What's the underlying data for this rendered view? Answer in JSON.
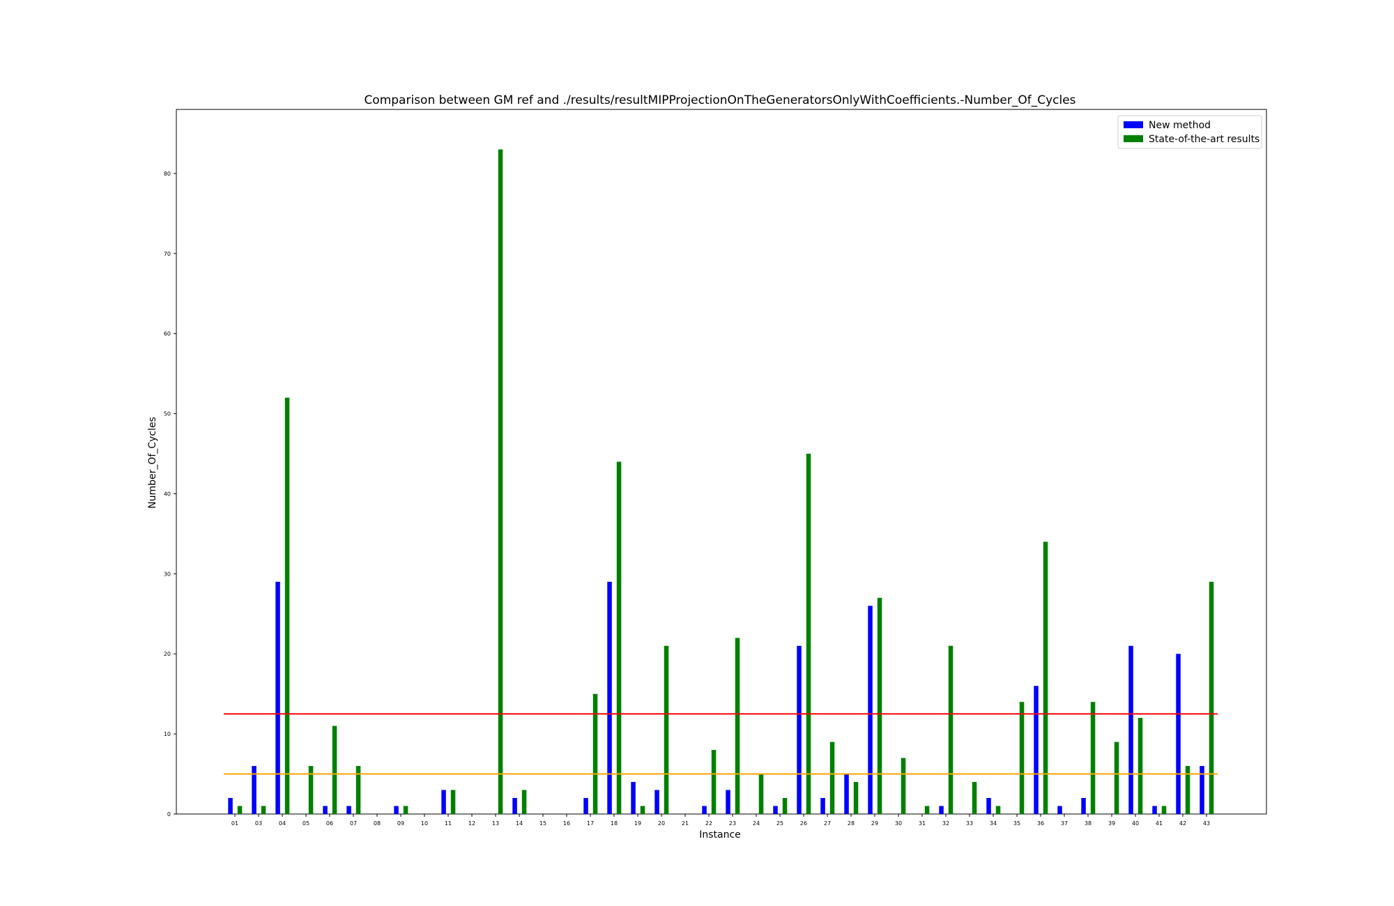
{
  "chart_data": {
    "type": "bar",
    "title": "Comparison between GM ref and ./results/resultMIPProjectionOnTheGeneratorsOnlyWithCoefficients.-Number_Of_Cycles",
    "xlabel": "Instance",
    "ylabel": "Number_Of_Cycles",
    "ylim": [
      0,
      88
    ],
    "yticks": [
      0,
      10,
      20,
      30,
      40,
      50,
      60,
      70,
      80
    ],
    "categories": [
      "01",
      "03",
      "04",
      "05",
      "06",
      "07",
      "08",
      "09",
      "10",
      "11",
      "12",
      "13",
      "14",
      "15",
      "16",
      "17",
      "18",
      "19",
      "20",
      "21",
      "22",
      "23",
      "24",
      "25",
      "26",
      "27",
      "28",
      "29",
      "30",
      "31",
      "32",
      "33",
      "34",
      "35",
      "36",
      "37",
      "38",
      "39",
      "40",
      "41",
      "42",
      "43"
    ],
    "series": [
      {
        "name": "New method",
        "color": "#0000ff",
        "values": [
          2,
          6,
          29,
          0,
          1,
          1,
          0,
          1,
          0,
          3,
          0,
          0,
          2,
          0,
          0,
          2,
          29,
          4,
          3,
          0,
          1,
          3,
          0,
          1,
          21,
          2,
          5,
          26,
          0,
          0,
          1,
          0,
          2,
          0,
          16,
          1,
          2,
          0,
          21,
          1,
          20,
          6
        ]
      },
      {
        "name": "State-of-the-art results",
        "color": "#008000",
        "values": [
          1,
          1,
          52,
          6,
          11,
          6,
          0,
          1,
          0,
          3,
          0,
          83,
          3,
          0,
          0,
          15,
          44,
          1,
          21,
          0,
          8,
          22,
          5,
          2,
          45,
          9,
          4,
          27,
          7,
          1,
          21,
          4,
          1,
          14,
          34,
          0,
          14,
          9,
          12,
          1,
          6,
          29
        ]
      }
    ],
    "reference_lines": [
      {
        "value": 12.5,
        "color": "#ff0000"
      },
      {
        "value": 5,
        "color": "#ffa500"
      }
    ],
    "legend_placement": "top-right",
    "grid": false
  }
}
